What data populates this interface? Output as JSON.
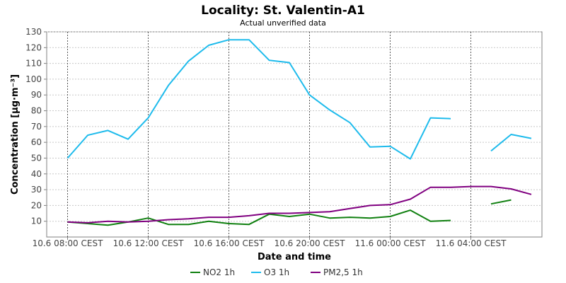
{
  "chart_data": {
    "type": "line",
    "title": "Locality: St. Valentin-A1",
    "subtitle": "Actual unverified data",
    "xlabel": "Date and time",
    "ylabel": "Concentration [µg·m⁻³]",
    "ylim": [
      0,
      130
    ],
    "yticks": [
      10,
      20,
      30,
      40,
      50,
      60,
      70,
      80,
      90,
      100,
      110,
      120,
      130
    ],
    "x_ticks": [
      {
        "hour": 0,
        "label": "10.6 08:00 CEST"
      },
      {
        "hour": 4,
        "label": "10.6 12:00 CEST"
      },
      {
        "hour": 8,
        "label": "10.6 16:00 CEST"
      },
      {
        "hour": 12,
        "label": "10.6 20:00 CEST"
      },
      {
        "hour": 16,
        "label": "11.6 00:00 CEST"
      },
      {
        "hour": 20,
        "label": "11.6 04:00 CEST"
      }
    ],
    "x_hours": [
      0,
      1,
      2,
      3,
      4,
      5,
      6,
      7,
      8,
      9,
      10,
      11,
      12,
      13,
      14,
      15,
      16,
      17,
      18,
      19,
      20,
      21,
      22,
      23
    ],
    "grid": true,
    "legend_position": "bottom",
    "series": [
      {
        "name": "NO2 1h",
        "color": "#108010",
        "values": [
          9.5,
          8.5,
          7.5,
          9.5,
          12,
          8,
          8,
          10,
          8.5,
          8,
          14.5,
          13,
          14.5,
          12,
          12.5,
          12,
          13,
          17,
          10,
          10.5,
          null,
          21,
          23.5,
          null
        ]
      },
      {
        "name": "O3 1h",
        "color": "#1ebbec",
        "values": [
          50,
          64.5,
          67.5,
          62,
          75.5,
          96,
          111.5,
          121.5,
          125,
          125,
          112,
          110.5,
          90,
          80.5,
          72.5,
          57,
          57.5,
          49.5,
          75.5,
          75,
          null,
          54.5,
          65,
          62.5
        ]
      },
      {
        "name": "PM2,5 1h",
        "color": "#800080",
        "values": [
          9.5,
          9,
          10,
          9.5,
          10,
          11,
          11.5,
          12.5,
          12.5,
          13.5,
          15,
          15,
          15.5,
          16,
          18,
          20,
          20.5,
          24,
          31.5,
          31.5,
          32,
          32,
          30.5,
          27
        ]
      }
    ]
  }
}
